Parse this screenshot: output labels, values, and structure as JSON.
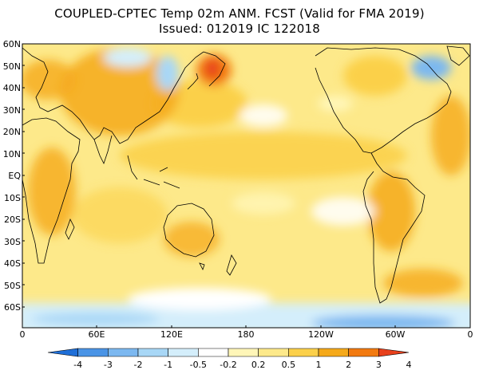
{
  "header": {
    "title_line1": "COUPLED-CPTEC Temp 02m ANM. FCST  (Valid for FMA 2019)",
    "title_line2": "Issued:  012019 IC 122018"
  },
  "map": {
    "lat_labels": [
      "60N",
      "50N",
      "40N",
      "30N",
      "20N",
      "10N",
      "EQ",
      "10S",
      "20S",
      "30S",
      "40S",
      "50S",
      "60S"
    ],
    "lon_labels": [
      "0",
      "60E",
      "120E",
      "180",
      "120W",
      "60W",
      "0"
    ],
    "background_color": "#fde98a"
  },
  "colorbar": {
    "labels": [
      "-4",
      "-3",
      "-2",
      "-1",
      "-0.5",
      "-0.2",
      "0.2",
      "0.5",
      "1",
      "2",
      "3",
      "4"
    ],
    "colors": [
      "#1f6fd8",
      "#4a94e6",
      "#7cb8f0",
      "#a8d7f6",
      "#d4eefb",
      "#ffffff",
      "#fff6b8",
      "#fde98a",
      "#fbd04a",
      "#f5a91a",
      "#f27a10",
      "#e8401c"
    ]
  }
}
